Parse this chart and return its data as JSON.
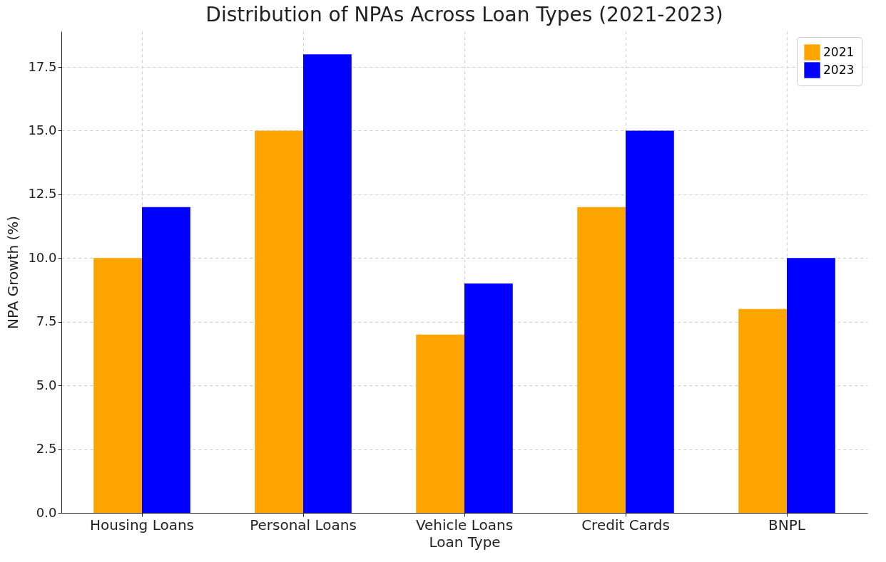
{
  "chart_data": {
    "type": "bar",
    "title": "Distribution of NPAs Across Loan Types (2021-2023)",
    "xlabel": "Loan Type",
    "ylabel": "NPA Growth (%)",
    "categories": [
      "Housing Loans",
      "Personal Loans",
      "Vehicle Loans",
      "Credit Cards",
      "BNPL"
    ],
    "series": [
      {
        "name": "2021",
        "color": "#ffa500",
        "values": [
          10,
          15,
          7,
          12,
          8
        ]
      },
      {
        "name": "2023",
        "color": "#0000ff",
        "values": [
          12,
          18,
          9,
          15,
          10
        ]
      }
    ],
    "ylim": [
      0,
      18.9
    ],
    "yticks": [
      {
        "value": 0,
        "label": "0.0"
      },
      {
        "value": 2.5,
        "label": "2.5"
      },
      {
        "value": 5,
        "label": "5.0"
      },
      {
        "value": 7.5,
        "label": "7.5"
      },
      {
        "value": 10,
        "label": "10.0"
      },
      {
        "value": 12.5,
        "label": "12.5"
      },
      {
        "value": 15,
        "label": "15.0"
      },
      {
        "value": 17.5,
        "label": "17.5"
      }
    ],
    "grid": true,
    "legend": "top right"
  }
}
